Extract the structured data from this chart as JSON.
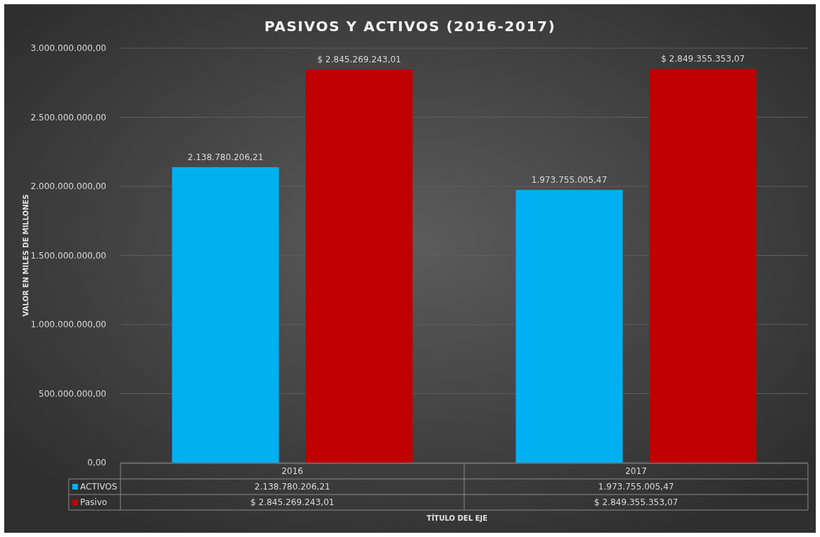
{
  "chart_data": {
    "type": "bar",
    "title": "PASIVOS Y ACTIVOS (2016-2017)",
    "annotations": [
      "TÍTULO DEL EJE"
    ],
    "ylabel": "VALOR EN MILES DE MILLONES",
    "categories": [
      "2016",
      "2017"
    ],
    "series": [
      {
        "name": "ACTIVOS",
        "color": "#00b0f0",
        "values": [
          2138780206.21,
          1973755005.47
        ],
        "value_labels": [
          "2.138.780.206,21",
          "1.973.755.005,47"
        ]
      },
      {
        "name": "Pasivo",
        "color": "#c00000",
        "values": [
          2845269243.01,
          2849355353.07
        ],
        "value_labels": [
          "$ 2.845.269.243,01",
          "$ 2.849.355.353,07"
        ]
      }
    ],
    "ylim": [
      0,
      3000000000
    ],
    "yticks": [
      {
        "value": 0,
        "label": "0,00"
      },
      {
        "value": 500000000,
        "label": "500.000.000,00"
      },
      {
        "value": 1000000000,
        "label": "1.000.000.000,00"
      },
      {
        "value": 1500000000,
        "label": "1.500.000.000,00"
      },
      {
        "value": 2000000000,
        "label": "2.000.000.000,00"
      },
      {
        "value": 2500000000,
        "label": "2.500.000.000,00"
      },
      {
        "value": 3000000000,
        "label": "3.000.000.000,00"
      }
    ],
    "grid": "y",
    "legend": "bottom"
  }
}
